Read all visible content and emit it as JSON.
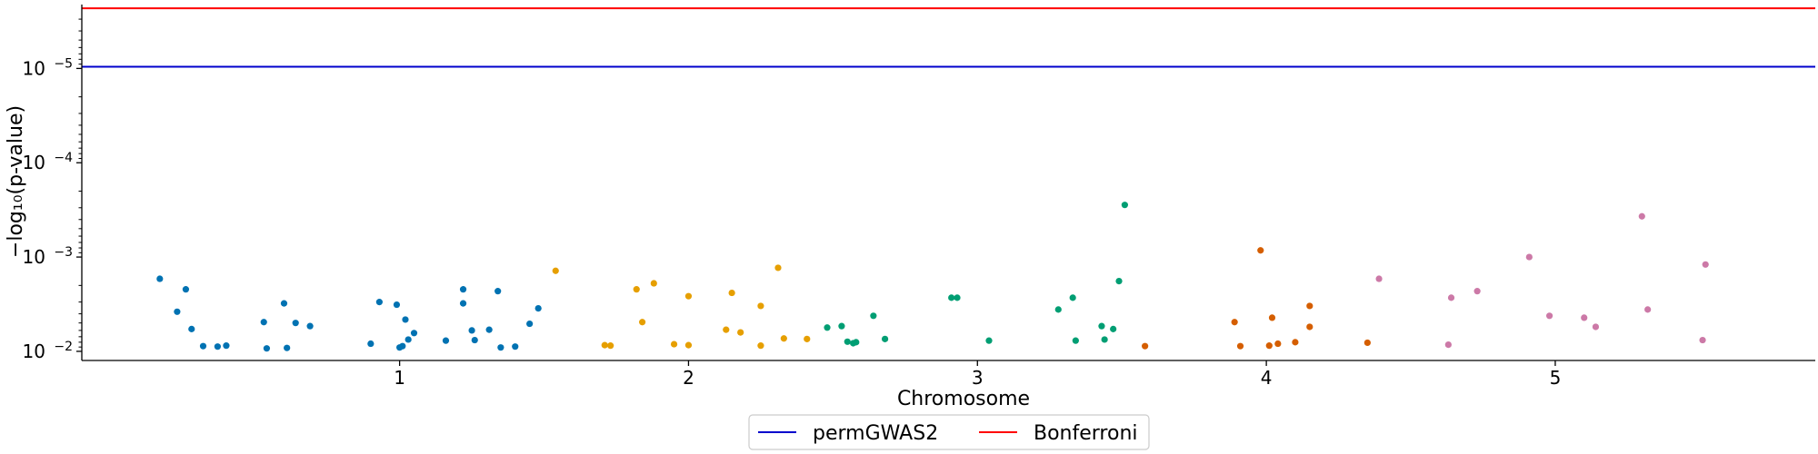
{
  "chart_data": {
    "type": "scatter",
    "title": "",
    "xlabel": "Chromosome",
    "ylabel": "−log₁₀(p-value)",
    "y_scale": "log",
    "y_inverted": true,
    "grid": false,
    "legend_placement": "bottom-center",
    "x_ticks": [
      1,
      2,
      3,
      4,
      5
    ],
    "y_ticks": [
      {
        "value": 0.01,
        "base": "10",
        "exp": "−2"
      },
      {
        "value": 0.001,
        "base": "10",
        "exp": "−3"
      },
      {
        "value": 0.0001,
        "base": "10",
        "exp": "−4"
      },
      {
        "value": 1e-05,
        "base": "10",
        "exp": "−5"
      }
    ],
    "xlim": [
      -0.1,
      5.9
    ],
    "ylim": [
      0.0125,
      2.1e-06
    ],
    "thresholds": [
      {
        "name": "permGWAS2",
        "value": 9.6e-06,
        "color": "#0000cc"
      },
      {
        "name": "Bonferroni",
        "value": 2.3e-06,
        "color": "#ff0000"
      }
    ],
    "series": [
      {
        "chromosome": "1",
        "color": "#0072b2",
        "points": [
          [
            0.17,
            0.0017
          ],
          [
            0.23,
            0.0038
          ],
          [
            0.26,
            0.0022
          ],
          [
            0.28,
            0.0058
          ],
          [
            0.32,
            0.0088
          ],
          [
            0.37,
            0.0089
          ],
          [
            0.4,
            0.0087
          ],
          [
            0.53,
            0.0049
          ],
          [
            0.54,
            0.0093
          ],
          [
            0.6,
            0.0031
          ],
          [
            0.61,
            0.0092
          ],
          [
            0.64,
            0.005
          ],
          [
            0.69,
            0.0054
          ],
          [
            0.9,
            0.0083
          ],
          [
            0.93,
            0.003
          ],
          [
            0.99,
            0.0032
          ],
          [
            1.0,
            0.0091
          ],
          [
            1.01,
            0.0088
          ],
          [
            1.02,
            0.0046
          ],
          [
            1.03,
            0.0075
          ],
          [
            1.05,
            0.0064
          ],
          [
            1.16,
            0.0077
          ],
          [
            1.22,
            0.0022
          ],
          [
            1.22,
            0.0031
          ],
          [
            1.25,
            0.006
          ],
          [
            1.26,
            0.0076
          ],
          [
            1.31,
            0.0059
          ],
          [
            1.34,
            0.0023
          ],
          [
            1.35,
            0.0091
          ],
          [
            1.4,
            0.0089
          ],
          [
            1.45,
            0.0051
          ],
          [
            1.48,
            0.0035
          ]
        ]
      },
      {
        "chromosome": "2",
        "color": "#e69f00",
        "points": [
          [
            1.54,
            0.0014
          ],
          [
            1.71,
            0.0086
          ],
          [
            1.73,
            0.0087
          ],
          [
            1.82,
            0.0022
          ],
          [
            1.84,
            0.0049
          ],
          [
            1.88,
            0.0019
          ],
          [
            1.95,
            0.0084
          ],
          [
            2.0,
            0.0026
          ],
          [
            2.0,
            0.0086
          ],
          [
            2.13,
            0.0059
          ],
          [
            2.15,
            0.0024
          ],
          [
            2.18,
            0.0063
          ],
          [
            2.25,
            0.0033
          ],
          [
            2.25,
            0.0087
          ],
          [
            2.31,
            0.0013
          ],
          [
            2.33,
            0.0073
          ],
          [
            2.41,
            0.0074
          ]
        ]
      },
      {
        "chromosome": "3",
        "color": "#009e73",
        "points": [
          [
            2.48,
            0.0056
          ],
          [
            2.53,
            0.0054
          ],
          [
            2.55,
            0.0079
          ],
          [
            2.57,
            0.0082
          ],
          [
            2.58,
            0.008
          ],
          [
            2.64,
            0.0042
          ],
          [
            2.68,
            0.0074
          ],
          [
            2.91,
            0.0027
          ],
          [
            2.93,
            0.0027
          ],
          [
            3.04,
            0.0077
          ],
          [
            3.28,
            0.0036
          ],
          [
            3.33,
            0.0027
          ],
          [
            3.34,
            0.0077
          ],
          [
            3.43,
            0.0054
          ],
          [
            3.44,
            0.0075
          ],
          [
            3.47,
            0.0058
          ],
          [
            3.49,
            0.0018
          ],
          [
            3.51,
            0.00028
          ]
        ]
      },
      {
        "chromosome": "4",
        "color": "#d55e00",
        "points": [
          [
            3.58,
            0.0088
          ],
          [
            3.89,
            0.0049
          ],
          [
            3.91,
            0.0088
          ],
          [
            3.98,
            0.00085
          ],
          [
            4.01,
            0.0087
          ],
          [
            4.02,
            0.0044
          ],
          [
            4.04,
            0.0083
          ],
          [
            4.1,
            0.008
          ],
          [
            4.15,
            0.0033
          ],
          [
            4.15,
            0.0055
          ],
          [
            4.35,
            0.0081
          ]
        ]
      },
      {
        "chromosome": "5",
        "color": "#cc79a7",
        "points": [
          [
            4.39,
            0.0017
          ],
          [
            4.63,
            0.0085
          ],
          [
            4.64,
            0.0027
          ],
          [
            4.73,
            0.0023
          ],
          [
            4.91,
            0.001
          ],
          [
            4.98,
            0.0042
          ],
          [
            5.1,
            0.0044
          ],
          [
            5.14,
            0.0055
          ],
          [
            5.3,
            0.00037
          ],
          [
            5.32,
            0.0036
          ],
          [
            5.51,
            0.0076
          ],
          [
            5.52,
            0.0012
          ]
        ]
      }
    ]
  }
}
